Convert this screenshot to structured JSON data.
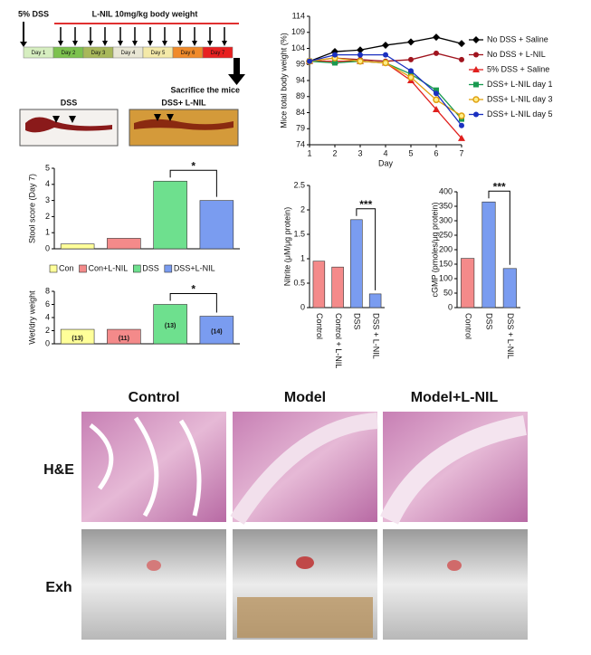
{
  "timeline": {
    "dss_label": "5% DSS",
    "treatment_label": "L-NIL 10mg/kg body weight",
    "days": [
      "Day 1",
      "Day 2",
      "Day 3",
      "Day 4",
      "Day 5",
      "Day 6",
      "Day 7"
    ],
    "end_label": "Sacrifice the mice"
  },
  "gross_photos": {
    "labels": [
      "DSS",
      "DSS+ L-NIL"
    ]
  },
  "chart_data": [
    {
      "type": "line",
      "y_label": "Mice total body weight (%)",
      "x_label": "Day",
      "x": [
        1,
        2,
        3,
        4,
        5,
        6,
        7
      ],
      "xlim": [
        1,
        7
      ],
      "xticks": [
        1,
        2,
        3,
        4,
        5,
        6,
        7
      ],
      "ylim": [
        74,
        114
      ],
      "yticks": [
        74,
        79,
        84,
        89,
        94,
        99,
        104,
        109,
        114
      ],
      "legend": "right",
      "series": [
        {
          "name": "No DSS + Saline",
          "color": "#000000",
          "marker": "diamond",
          "values": [
            100,
            103,
            103.5,
            105,
            106,
            107.5,
            105.5
          ]
        },
        {
          "name": "No DSS + L-NIL",
          "color": "#a0141e",
          "marker": "circle",
          "values": [
            100,
            101,
            100.5,
            100,
            100.5,
            102.5,
            100.5
          ]
        },
        {
          "name": "5% DSS + Saline",
          "color": "#e0201e",
          "marker": "triangle",
          "values": [
            100,
            100,
            100,
            99.5,
            94,
            85,
            76
          ]
        },
        {
          "name": "DSS+ L-NIL day 1",
          "color": "#1a9a50",
          "marker": "square",
          "values": [
            100,
            99.5,
            100,
            99.5,
            96,
            91,
            82
          ]
        },
        {
          "name": "DSS+ L-NIL day 3",
          "color": "#e0a010",
          "marker": "circle-open",
          "values": [
            100,
            101,
            100,
            99.5,
            95,
            88,
            83
          ]
        },
        {
          "name": "DSS+ L-NIL day 5",
          "color": "#1a30c0",
          "marker": "circle",
          "values": [
            100,
            102,
            102,
            102,
            97,
            90,
            80
          ]
        }
      ]
    },
    {
      "type": "bar",
      "y_label": "Stool score (Day 7)",
      "categories": [
        "Con",
        "Con+L-NIL",
        "DSS",
        "DSS+L-NIL"
      ],
      "values": [
        0.3,
        0.65,
        4.2,
        3.0
      ],
      "colors": [
        "#ffff99",
        "#f48a8a",
        "#6ee08e",
        "#7a9cf0"
      ],
      "ylim": [
        0,
        5
      ],
      "yticks": [
        0,
        1,
        2,
        3,
        4,
        5
      ],
      "annotation": "*",
      "legend": "bottom"
    },
    {
      "type": "bar",
      "y_label": "Wet/dry weight",
      "values": [
        2.2,
        2.2,
        6,
        4.2
      ],
      "sample_sizes": [
        "(13)",
        "(11)",
        "(13)",
        "(14)"
      ],
      "colors": [
        "#ffff99",
        "#f48a8a",
        "#6ee08e",
        "#7a9cf0"
      ],
      "ylim": [
        0,
        8
      ],
      "yticks": [
        0,
        2,
        4,
        6,
        8
      ],
      "annotation": "*"
    },
    {
      "type": "bar",
      "y_label": "Nitrite (μM/μg protein)",
      "categories": [
        "Control",
        "Control + L-NIL",
        "DSS",
        "DSS + L-NIL"
      ],
      "values": [
        0.95,
        0.83,
        1.8,
        0.28
      ],
      "colors": [
        "#f48a8a",
        "#f48a8a",
        "#7a9cf0",
        "#7a9cf0"
      ],
      "ylim": [
        0,
        2.5
      ],
      "yticks": [
        0,
        0.5,
        1,
        1.5,
        2,
        2.5
      ],
      "annotation": "***"
    },
    {
      "type": "bar",
      "y_label": "cGMP (pmoles/μg protein)",
      "categories": [
        "Control",
        "DSS",
        "DSS + L-NIL"
      ],
      "values": [
        170,
        365,
        135
      ],
      "colors": [
        "#f48a8a",
        "#7a9cf0",
        "#7a9cf0"
      ],
      "ylim": [
        0,
        400
      ],
      "yticks": [
        0,
        50,
        100,
        150,
        200,
        250,
        300,
        350,
        400
      ],
      "annotation": "***"
    }
  ],
  "histology": {
    "columns": [
      "Control",
      "Model",
      "Model+L-NIL"
    ],
    "rows": [
      "H&E",
      "Exh"
    ]
  }
}
